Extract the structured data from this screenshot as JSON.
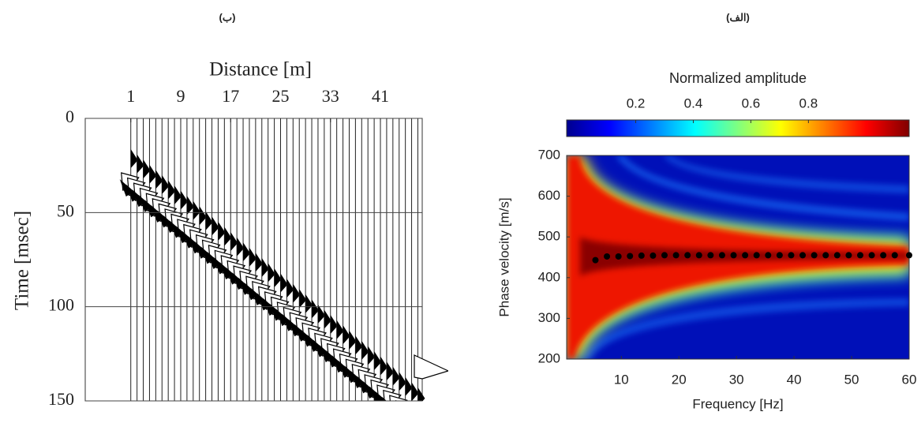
{
  "chart_data": [
    {
      "type": "wiggle",
      "title": "(ب)",
      "xlabel": "Distance [m]",
      "ylabel": "Time [msec]",
      "xlim": [
        -6.3,
        47.7
      ],
      "xticks": [
        1,
        9,
        17,
        25,
        33,
        41
      ],
      "ylim": [
        0,
        150
      ],
      "yticks": [
        0,
        50,
        100,
        150
      ],
      "y_reversed": true,
      "grid": true
    },
    {
      "type": "scatter",
      "title": "(الف)",
      "xlabel": "Frequency [Hz]",
      "ylabel": "Phase velocity [m/s]",
      "xlim": [
        0.5,
        60
      ],
      "xticks": [
        10,
        20,
        30,
        40,
        50,
        60
      ],
      "ylim": [
        200,
        700
      ],
      "yticks": [
        200,
        300,
        400,
        500,
        600,
        700
      ],
      "colorbar": {
        "label": "Normalized amplitude",
        "lim": [
          -0.04,
          1.15
        ],
        "ticks": [
          0.2,
          0.4,
          0.6,
          0.8
        ],
        "colormap": "jet"
      },
      "color": "#000000",
      "x": [
        5.5,
        7.5,
        9.5,
        11.5,
        13.5,
        15.5,
        17.5,
        19.5,
        21.5,
        23.5,
        25.5,
        27.5,
        29.5,
        31.5,
        33.5,
        35.5,
        37.5,
        39.5,
        41.5,
        43.5,
        45.5,
        47.5,
        49.5,
        51.5,
        53.5,
        55.5,
        57.5,
        60
      ],
      "values": [
        443,
        452,
        452,
        453,
        454,
        454,
        455,
        455,
        455,
        455,
        455,
        455,
        455,
        455,
        455,
        455,
        455,
        455,
        455,
        455,
        455,
        455,
        455,
        455,
        455,
        455,
        455,
        455
      ]
    }
  ]
}
